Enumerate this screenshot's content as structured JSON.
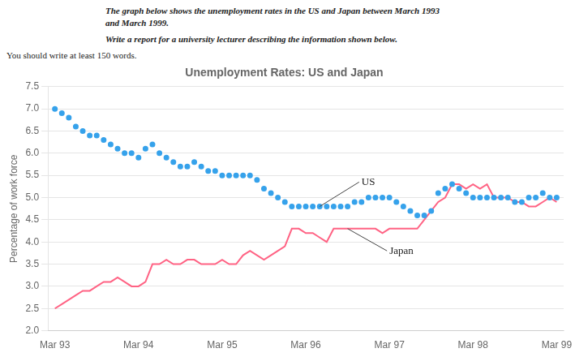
{
  "chart_data": {
    "type": "line",
    "title": "Unemployment Rates: US and Japan",
    "subtitle": [
      "The graph below shows the unemployment rates in the US and Japan between March 1993\nand March 1999.",
      "Write a report for a university lecturer describing the information shown below.",
      "You should write at least 150 words."
    ],
    "ylabel": "Percentage of work force",
    "x": [
      0,
      1,
      2,
      3,
      4,
      5,
      6,
      7,
      8,
      9,
      10,
      11,
      12,
      13,
      14,
      15,
      16,
      17,
      18,
      19,
      20,
      21,
      22,
      23,
      24,
      25,
      26,
      27,
      28,
      29,
      30,
      31,
      32,
      33,
      34,
      35,
      36,
      37,
      38,
      39,
      40,
      41,
      42,
      43,
      44,
      45,
      46,
      47,
      48,
      49,
      50,
      51,
      52,
      53,
      54,
      55,
      56,
      57,
      58,
      59,
      60,
      61,
      62,
      63,
      64,
      65,
      66,
      67,
      68,
      69,
      70,
      71,
      72
    ],
    "series": [
      {
        "name": "US",
        "marker": "dot",
        "line_style": "none",
        "values": [
          7.0,
          6.9,
          6.8,
          6.6,
          6.5,
          6.4,
          6.4,
          6.3,
          6.2,
          6.1,
          6.0,
          6.0,
          5.9,
          6.1,
          6.2,
          6.0,
          5.9,
          5.8,
          5.7,
          5.7,
          5.8,
          5.7,
          5.6,
          5.6,
          5.5,
          5.5,
          5.5,
          5.5,
          5.5,
          5.4,
          5.2,
          5.1,
          5.0,
          4.9,
          4.8,
          4.8,
          4.8,
          4.8,
          4.8,
          4.8,
          4.8,
          4.8,
          4.8,
          4.9,
          4.9,
          5.0,
          5.0,
          5.0,
          5.0,
          4.9,
          4.8,
          4.7,
          4.6,
          4.6,
          4.7,
          5.1,
          5.2,
          5.3,
          5.2,
          5.1,
          5.0,
          5.0,
          5.0,
          5.0,
          5.0,
          5.0,
          4.9,
          4.9,
          5.0,
          5.0,
          5.1,
          5.0,
          5.0
        ]
      },
      {
        "name": "Japan",
        "marker": "none",
        "line_style": "solid",
        "values": [
          2.5,
          2.6,
          2.7,
          2.8,
          2.9,
          2.9,
          3.0,
          3.1,
          3.1,
          3.2,
          3.1,
          3.0,
          3.0,
          3.1,
          3.5,
          3.5,
          3.6,
          3.5,
          3.5,
          3.6,
          3.6,
          3.5,
          3.5,
          3.5,
          3.6,
          3.5,
          3.5,
          3.7,
          3.8,
          3.7,
          3.6,
          3.7,
          3.8,
          3.9,
          4.3,
          4.3,
          4.2,
          4.2,
          4.1,
          4.0,
          4.3,
          4.3,
          4.3,
          4.3,
          4.3,
          4.3,
          4.3,
          4.2,
          4.3,
          4.3,
          4.3,
          4.3,
          4.3,
          4.5,
          4.7,
          4.9,
          5.0,
          5.3,
          5.3,
          5.2,
          5.3,
          5.2,
          5.3,
          5.0,
          5.0,
          5.0,
          4.9,
          4.9,
          4.8,
          4.8,
          4.9,
          5.0,
          4.9
        ]
      }
    ],
    "xlim": [
      -1,
      73
    ],
    "xticks": [
      {
        "value": 0,
        "label": "Mar 93"
      },
      {
        "value": 12,
        "label": "Mar 94"
      },
      {
        "value": 24,
        "label": "Mar 95"
      },
      {
        "value": 36,
        "label": "Mar 96"
      },
      {
        "value": 48,
        "label": "Mar 97"
      },
      {
        "value": 60,
        "label": "Mar 98"
      },
      {
        "value": 72,
        "label": "Mar 99"
      }
    ],
    "ylim": [
      2.0,
      7.5
    ],
    "yticks": [
      {
        "value": 2.0,
        "label": "2.0"
      },
      {
        "value": 2.5,
        "label": "2.5"
      },
      {
        "value": 3.0,
        "label": "3.0"
      },
      {
        "value": 3.5,
        "label": "3.5"
      },
      {
        "value": 4.0,
        "label": "4.0"
      },
      {
        "value": 4.5,
        "label": "4.5"
      },
      {
        "value": 5.0,
        "label": "5.0"
      },
      {
        "value": 5.5,
        "label": "5.5"
      },
      {
        "value": 6.0,
        "label": "6.0"
      },
      {
        "value": 6.5,
        "label": "6.5"
      },
      {
        "value": 7.0,
        "label": "7.0"
      },
      {
        "value": 7.5,
        "label": "7.5"
      }
    ],
    "annotations": [
      {
        "text": "US",
        "x": 38,
        "y": 4.8,
        "text_x": 44,
        "text_y": 5.35
      },
      {
        "text": "Japan",
        "x": 42,
        "y": 4.3,
        "text_x": 48,
        "text_y": 3.8
      }
    ],
    "grid": "y"
  }
}
